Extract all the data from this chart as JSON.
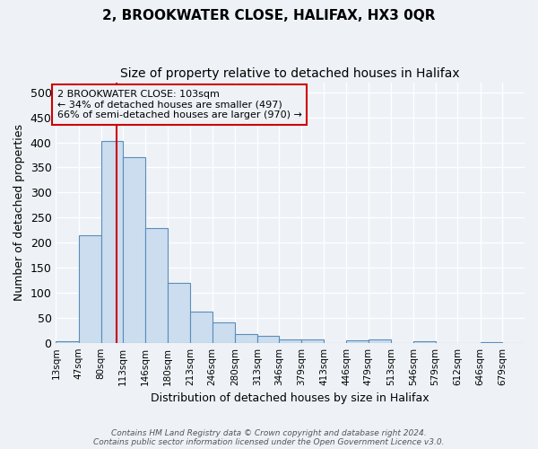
{
  "title": "2, BROOKWATER CLOSE, HALIFAX, HX3 0QR",
  "subtitle": "Size of property relative to detached houses in Halifax",
  "xlabel": "Distribution of detached houses by size in Halifax",
  "ylabel": "Number of detached properties",
  "footer_line1": "Contains HM Land Registry data © Crown copyright and database right 2024.",
  "footer_line2": "Contains public sector information licensed under the Open Government Licence v3.0.",
  "annotation_line1": "2 BROOKWATER CLOSE: 103sqm",
  "annotation_line2": "← 34% of detached houses are smaller (497)",
  "annotation_line3": "66% of semi-detached houses are larger (970) →",
  "bar_edges": [
    13,
    47,
    80,
    113,
    146,
    180,
    213,
    246,
    280,
    313,
    346,
    379,
    413,
    446,
    479,
    513,
    546,
    579,
    612,
    646,
    679,
    712
  ],
  "bar_heights": [
    3,
    215,
    403,
    370,
    228,
    120,
    63,
    40,
    18,
    13,
    6,
    6,
    0,
    4,
    6,
    0,
    3,
    0,
    0,
    1,
    0
  ],
  "tick_labels": [
    "13sqm",
    "47sqm",
    "80sqm",
    "113sqm",
    "146sqm",
    "180sqm",
    "213sqm",
    "246sqm",
    "280sqm",
    "313sqm",
    "346sqm",
    "379sqm",
    "413sqm",
    "446sqm",
    "479sqm",
    "513sqm",
    "546sqm",
    "579sqm",
    "612sqm",
    "646sqm",
    "679sqm"
  ],
  "property_line_x": 103,
  "bar_color": "#ccddf0",
  "bar_edge_color": "#5b8db8",
  "redline_color": "#cc0000",
  "background_color": "#eef2f7",
  "grid_color": "#ffffff",
  "ylim": [
    0,
    520
  ],
  "yticks": [
    0,
    50,
    100,
    150,
    200,
    250,
    300,
    350,
    400,
    450,
    500
  ]
}
